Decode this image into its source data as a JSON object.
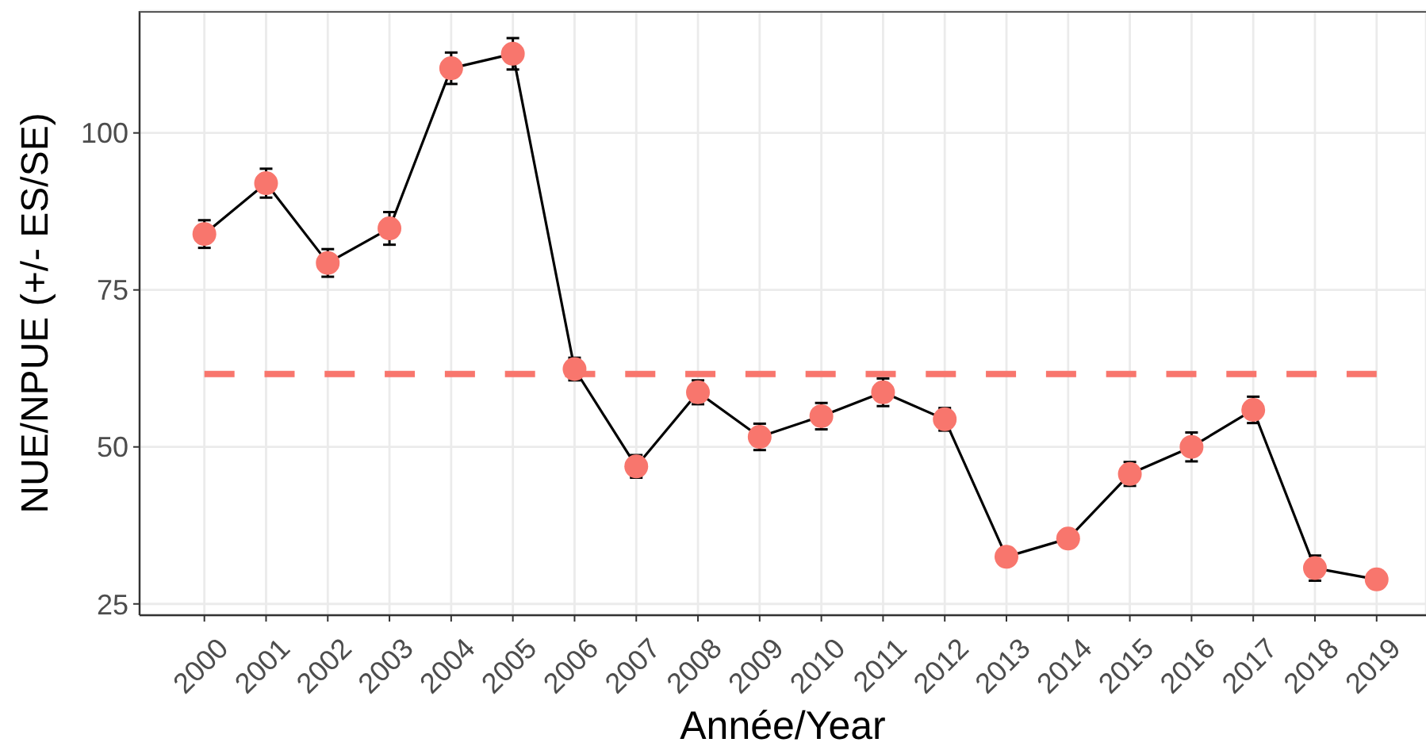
{
  "chart_data": {
    "type": "line",
    "xlabel": "Année/Year",
    "ylabel": "NUE/NPUE (+/- ES/SE)",
    "x": [
      2000,
      2001,
      2002,
      2003,
      2004,
      2005,
      2006,
      2007,
      2008,
      2009,
      2010,
      2011,
      2012,
      2013,
      2014,
      2015,
      2016,
      2017,
      2018,
      2019
    ],
    "values": [
      83.9,
      92.0,
      79.3,
      84.8,
      110.3,
      112.6,
      62.4,
      46.9,
      58.7,
      51.6,
      54.9,
      58.7,
      54.4,
      32.5,
      35.4,
      45.7,
      50.0,
      55.9,
      30.7,
      28.9
    ],
    "errors": [
      2.2,
      2.3,
      2.2,
      2.6,
      2.5,
      2.5,
      1.8,
      1.8,
      1.9,
      2.1,
      2.1,
      2.2,
      1.8,
      null,
      null,
      1.9,
      2.3,
      2.1,
      2.0,
      null
    ],
    "color": "#000000",
    "colors": [
      "#f8766d",
      "#f8766d",
      "#f8766d",
      "#f8766d",
      "#f8766d",
      "#f8766d",
      "#f8766d",
      "#f8766d",
      "#f8766d",
      "#f8766d",
      "#f8766d",
      "#f8766d",
      "#f8766d",
      "#f8766d",
      "#f8766d",
      "#f8766d",
      "#f8766d",
      "#f8766d",
      "#f8766d",
      "#f8766d"
    ],
    "marker": "circle",
    "line_style": "solid",
    "xlim": [
      1998.95,
      2019.8
    ],
    "xticks": [
      2000,
      2001,
      2002,
      2003,
      2004,
      2005,
      2006,
      2007,
      2008,
      2009,
      2010,
      2011,
      2012,
      2013,
      2014,
      2015,
      2016,
      2017,
      2018,
      2019
    ],
    "ylim": [
      23.2,
      119.4
    ],
    "yticks": [
      25,
      50,
      75,
      100
    ],
    "grid": true,
    "ref_lines": [
      {
        "axis": "y",
        "value": 61.6,
        "color": "#f8766d",
        "line_style": "dashed"
      }
    ]
  }
}
